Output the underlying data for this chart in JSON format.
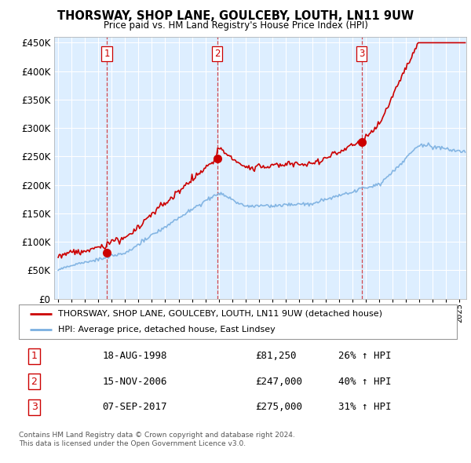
{
  "title": "THORSWAY, SHOP LANE, GOULCEBY, LOUTH, LN11 9UW",
  "subtitle": "Price paid vs. HM Land Registry's House Price Index (HPI)",
  "legend_line1": "THORSWAY, SHOP LANE, GOULCEBY, LOUTH, LN11 9UW (detached house)",
  "legend_line2": "HPI: Average price, detached house, East Lindsey",
  "table_rows": [
    {
      "num": "1",
      "date": "18-AUG-1998",
      "price": "£81,250",
      "change": "26% ↑ HPI"
    },
    {
      "num": "2",
      "date": "15-NOV-2006",
      "price": "£247,000",
      "change": "40% ↑ HPI"
    },
    {
      "num": "3",
      "date": "07-SEP-2017",
      "price": "£275,000",
      "change": "31% ↑ HPI"
    }
  ],
  "footnote1": "Contains HM Land Registry data © Crown copyright and database right 2024.",
  "footnote2": "This data is licensed under the Open Government Licence v3.0.",
  "sale_dates": [
    1998.63,
    2006.88,
    2017.68
  ],
  "sale_prices": [
    81250,
    247000,
    275000
  ],
  "vline_x": [
    1998.63,
    2006.88,
    2017.68
  ],
  "vline_labels": [
    "1",
    "2",
    "3"
  ],
  "red_line_color": "#cc0000",
  "blue_line_color": "#7aafe0",
  "chart_bg_color": "#ddeeff",
  "grid_color": "#ffffff",
  "background_color": "#ffffff",
  "ylim": [
    0,
    460000
  ],
  "xlim_start": 1994.7,
  "xlim_end": 2025.5,
  "yticks": [
    0,
    50000,
    100000,
    150000,
    200000,
    250000,
    300000,
    350000,
    400000,
    450000
  ],
  "xticks": [
    1995,
    1996,
    1997,
    1998,
    1999,
    2000,
    2001,
    2002,
    2003,
    2004,
    2005,
    2006,
    2007,
    2008,
    2009,
    2010,
    2011,
    2012,
    2013,
    2014,
    2015,
    2016,
    2017,
    2018,
    2019,
    2020,
    2021,
    2022,
    2023,
    2024,
    2025
  ]
}
